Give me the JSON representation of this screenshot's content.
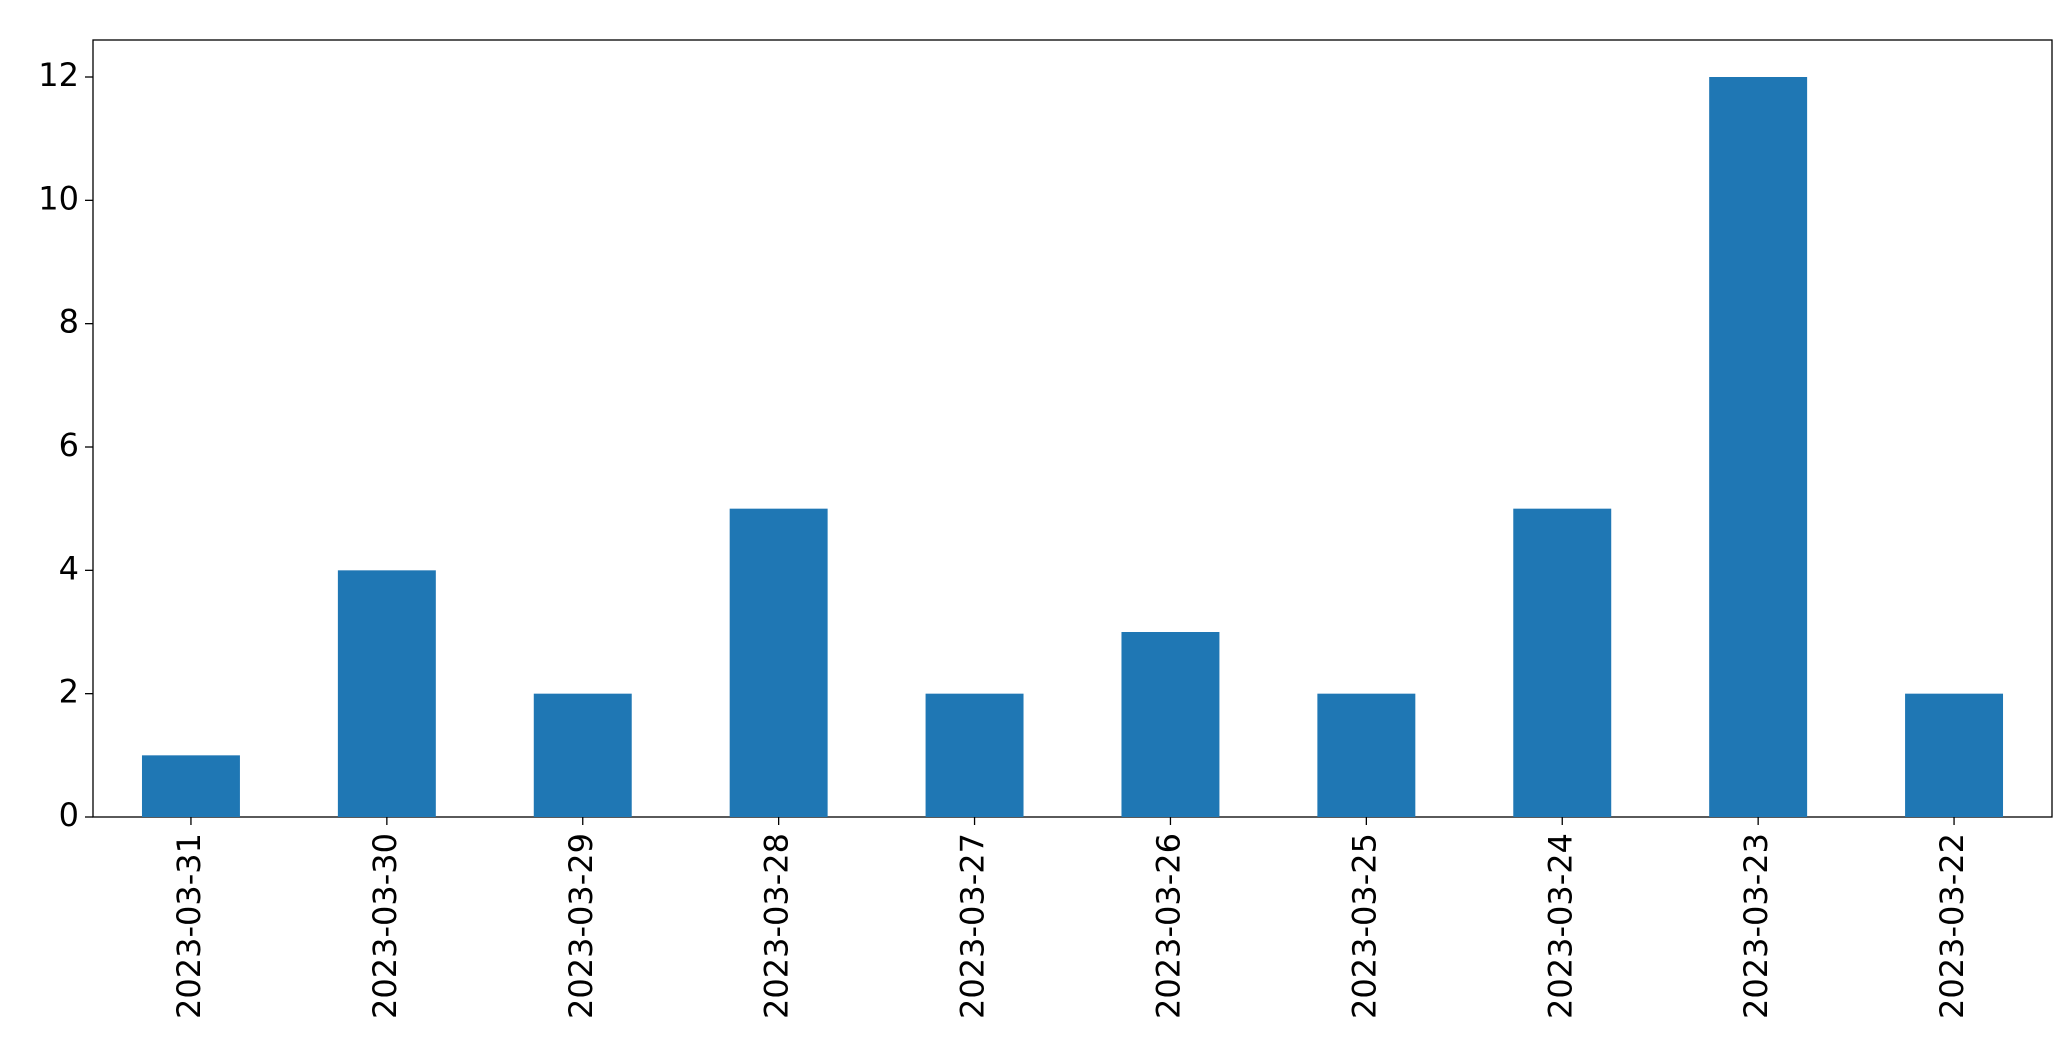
{
  "chart_data": {
    "type": "bar",
    "categories": [
      "2023-03-31",
      "2023-03-30",
      "2023-03-29",
      "2023-03-28",
      "2023-03-27",
      "2023-03-26",
      "2023-03-25",
      "2023-03-24",
      "2023-03-23",
      "2023-03-22"
    ],
    "values": [
      1,
      4,
      2,
      5,
      2,
      3,
      2,
      5,
      12,
      2
    ],
    "color": "#1f77b4",
    "ylim": [
      0,
      12.6
    ],
    "yticks": [
      0,
      2,
      4,
      6,
      8,
      10,
      12
    ],
    "grid": false
  }
}
